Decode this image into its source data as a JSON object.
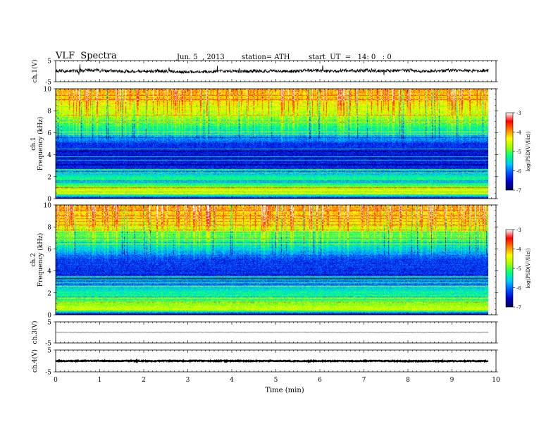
{
  "header": {
    "title": "VLF  Spectra",
    "date": "Jun. 5  , 2013",
    "station": "station= ATH",
    "start": "start  UT  =   14: 0   : 0"
  },
  "colorbar": {
    "label": "log(PSD(V²/Hz))",
    "ticks": [
      "-3",
      "-4",
      "-5",
      "-6",
      "-7"
    ],
    "range": [
      -7,
      -3
    ],
    "colors": [
      "#000050",
      "#0000c8",
      "#0050ff",
      "#00c8ff",
      "#00ff80",
      "#a0ff00",
      "#ffff00",
      "#ff8000",
      "#ff0000",
      "#ffffff"
    ]
  },
  "chart_data": [
    {
      "type": "line",
      "panel": "ch1",
      "ylabel": "ch.1(V)",
      "ylim": [
        -5,
        5
      ],
      "yticks": [
        "5",
        "-5"
      ],
      "x_range_min": [
        0,
        9.83
      ],
      "baseline_v": 0,
      "noise_amplitude_v": 1.5
    },
    {
      "type": "heatmap",
      "panel": "ch1-spectrogram",
      "ylabel_channel": "ch.1",
      "ylabel": "Frequency  (kHz)",
      "ylim": [
        0,
        10
      ],
      "yticks": [
        "0",
        "2",
        "4",
        "6",
        "8",
        "10"
      ],
      "x_range_min": [
        0,
        9.83
      ],
      "unit": "log(PSD(V²/Hz))",
      "frequency_profile": [
        {
          "f_khz": 0.0,
          "log_psd": -7.0
        },
        {
          "f_khz": 0.5,
          "log_psd": -4.3
        },
        {
          "f_khz": 1.0,
          "log_psd": -4.7
        },
        {
          "f_khz": 1.5,
          "log_psd": -5.4
        },
        {
          "f_khz": 2.0,
          "log_psd": -5.3
        },
        {
          "f_khz": 2.5,
          "log_psd": -5.9
        },
        {
          "f_khz": 3.0,
          "log_psd": -6.4
        },
        {
          "f_khz": 4.0,
          "log_psd": -6.5
        },
        {
          "f_khz": 5.0,
          "log_psd": -6.3
        },
        {
          "f_khz": 6.0,
          "log_psd": -5.5
        },
        {
          "f_khz": 7.0,
          "log_psd": -5.0
        },
        {
          "f_khz": 8.0,
          "log_psd": -4.6
        },
        {
          "f_khz": 9.0,
          "log_psd": -4.2
        },
        {
          "f_khz": 10.0,
          "log_psd": -4.0
        }
      ]
    },
    {
      "type": "heatmap",
      "panel": "ch2-spectrogram",
      "ylabel_channel": "ch.2",
      "ylabel": "Frequency  (kHz)",
      "ylim": [
        0,
        10
      ],
      "yticks": [
        "0",
        "2",
        "4",
        "6",
        "8",
        "10"
      ],
      "x_range_min": [
        0,
        9.83
      ],
      "unit": "log(PSD(V²/Hz))",
      "frequency_profile": [
        {
          "f_khz": 0.0,
          "log_psd": -7.0
        },
        {
          "f_khz": 0.5,
          "log_psd": -4.5
        },
        {
          "f_khz": 1.0,
          "log_psd": -4.8
        },
        {
          "f_khz": 1.5,
          "log_psd": -5.2
        },
        {
          "f_khz": 2.0,
          "log_psd": -5.3
        },
        {
          "f_khz": 2.5,
          "log_psd": -5.6
        },
        {
          "f_khz": 3.0,
          "log_psd": -6.0
        },
        {
          "f_khz": 4.0,
          "log_psd": -6.3
        },
        {
          "f_khz": 5.0,
          "log_psd": -6.2
        },
        {
          "f_khz": 6.0,
          "log_psd": -5.6
        },
        {
          "f_khz": 7.0,
          "log_psd": -5.1
        },
        {
          "f_khz": 8.0,
          "log_psd": -4.6
        },
        {
          "f_khz": 9.0,
          "log_psd": -4.2
        },
        {
          "f_khz": 10.0,
          "log_psd": -4.0
        }
      ]
    },
    {
      "type": "line",
      "panel": "ch3",
      "ylabel": "ch.3(V)",
      "ylim": [
        -5,
        5
      ],
      "yticks": [
        "5",
        "-5"
      ],
      "x_range_min": [
        0,
        9.83
      ],
      "baseline_v": 0,
      "noise_amplitude_v": 0.1
    },
    {
      "type": "line",
      "panel": "ch4",
      "ylabel": "ch.4(V)",
      "ylim": [
        -5,
        5
      ],
      "yticks": [
        "5",
        "-5"
      ],
      "x_range_min": [
        0,
        9.83
      ],
      "baseline_v": 0,
      "noise_amplitude_v": 0.4
    }
  ],
  "xaxis": {
    "label": "Time  (min)",
    "range": [
      0,
      10
    ],
    "ticks": [
      "0",
      "1",
      "2",
      "3",
      "4",
      "5",
      "6",
      "7",
      "8",
      "9",
      "10"
    ]
  }
}
